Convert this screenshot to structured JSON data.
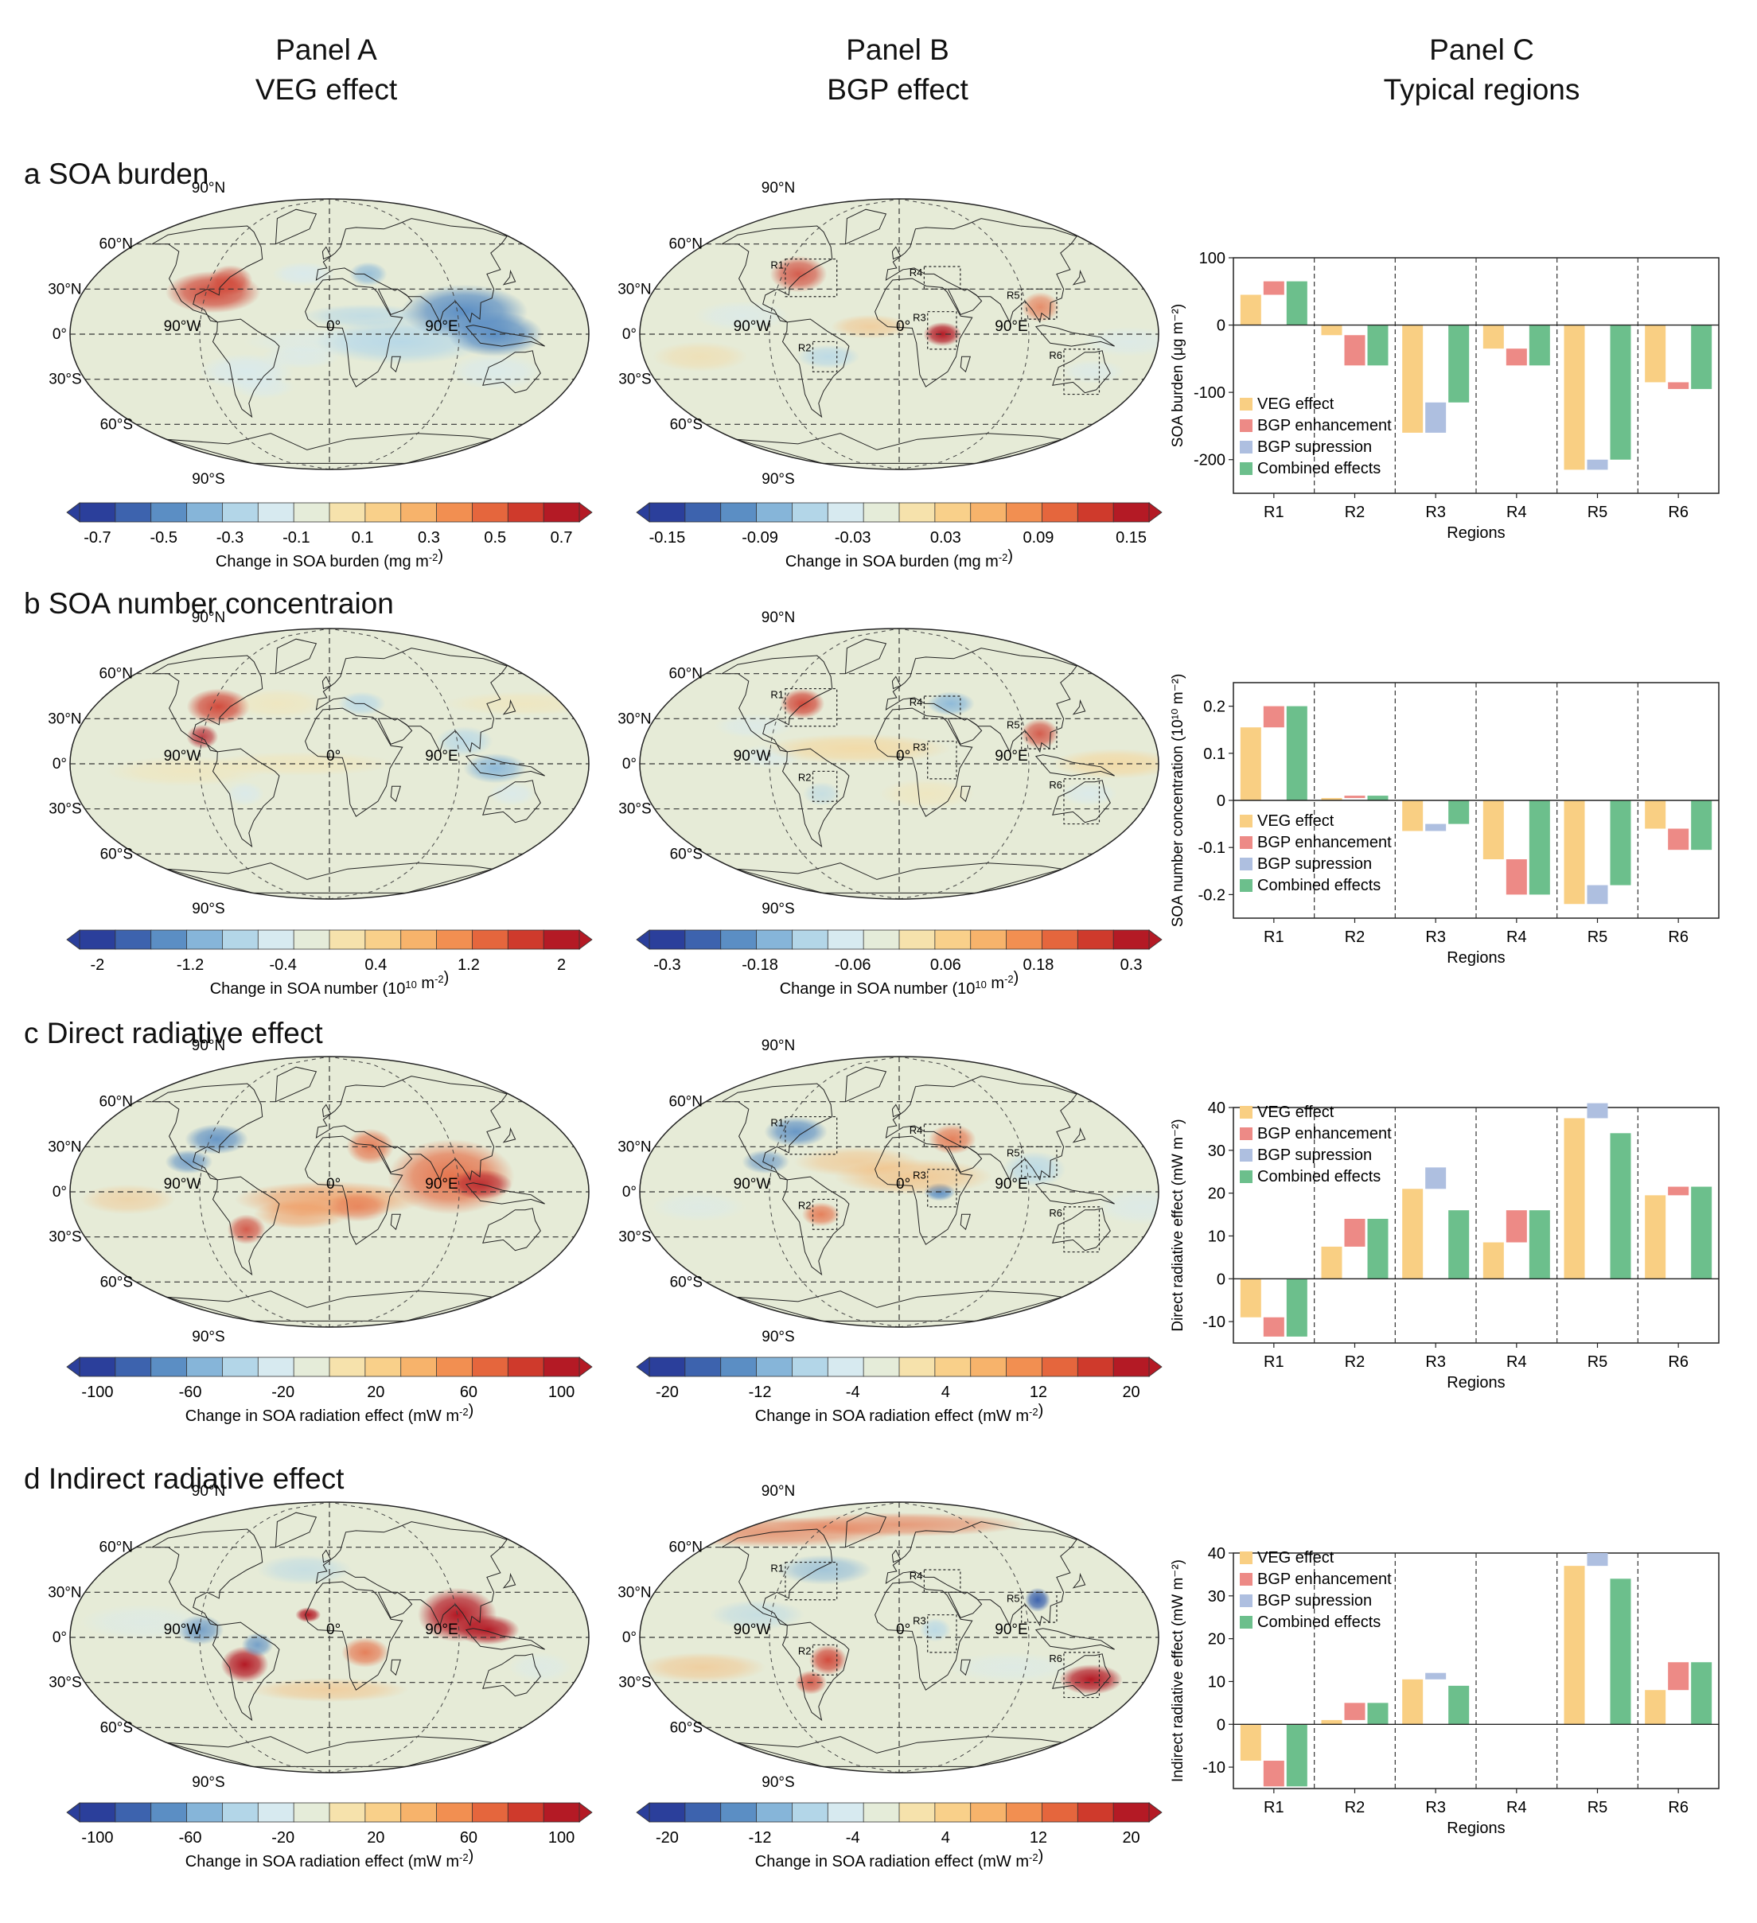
{
  "column_headers": [
    {
      "line1": "Panel A",
      "line2": "VEG effect"
    },
    {
      "line1": "Panel B",
      "line2": "BGP effect"
    },
    {
      "line1": "Panel C",
      "line2": "Typical regions"
    }
  ],
  "map_labels": {
    "lat": [
      "90°N",
      "60°N",
      "30°N",
      "0°",
      "30°S",
      "60°S",
      "90°S"
    ],
    "lon": [
      "90°W",
      "0°",
      "90°E"
    ],
    "regions": [
      "R1",
      "R2",
      "R3",
      "R4",
      "R5",
      "R6"
    ]
  },
  "colors": {
    "veg": "#f9cf83",
    "bgp_enh": "#ed8a86",
    "bgp_sup": "#aebfe0",
    "combined": "#6cbf8c",
    "colormap": [
      "#2b3f9b",
      "#3d63ae",
      "#5b8ec4",
      "#86b5d9",
      "#b3d6e8",
      "#d7eaf0",
      "#e5ecd9",
      "#f6e2ac",
      "#f9d08a",
      "#f7b36b",
      "#f28f51",
      "#e5663d",
      "#cf3a2c",
      "#b41a25"
    ]
  },
  "legend": [
    "VEG effect",
    "BGP enhancement",
    "BGP supression",
    "Combined effects"
  ],
  "xlabel": "Regions",
  "rows": [
    {
      "title": "a SOA burden",
      "cbarA": {
        "ticks": [
          "-0.7",
          "-0.5",
          "-0.3",
          "-0.1",
          "0.1",
          "0.3",
          "0.5",
          "0.7"
        ],
        "label_prefix": "Change in SOA burden (mg m",
        "label_sup": "-2",
        "label_suffix": ")"
      },
      "cbarB": {
        "ticks": [
          "-0.15",
          "-0.09",
          "-0.03",
          "0.03",
          "0.09",
          "0.15"
        ],
        "label_prefix": "Change in SOA burden (mg m",
        "label_sup": "-2",
        "label_suffix": ")"
      }
    },
    {
      "title": "b SOA number concentraion",
      "cbarA": {
        "ticks": [
          "-2",
          "-1.2",
          "-0.4",
          "0.4",
          "1.2",
          "2"
        ],
        "label_prefix": "Change in SOA number (10",
        "label_sup": "10",
        "label_suffix": " m",
        "label_sup2": "-2",
        "label_suffix2": ")"
      },
      "cbarB": {
        "ticks": [
          "-0.3",
          "-0.18",
          "-0.06",
          "0.06",
          "0.18",
          "0.3"
        ],
        "label_prefix": "Change in SOA number (10",
        "label_sup": "10",
        "label_suffix": " m",
        "label_sup2": "-2",
        "label_suffix2": ")"
      }
    },
    {
      "title": "c Direct radiative effect",
      "cbarA": {
        "ticks": [
          "-100",
          "-60",
          "-20",
          "20",
          "60",
          "100"
        ],
        "label_prefix": "Change in SOA radiation effect (mW m",
        "label_sup": "-2",
        "label_suffix": ")"
      },
      "cbarB": {
        "ticks": [
          "-20",
          "-12",
          "-4",
          "4",
          "12",
          "20"
        ],
        "label_prefix": "Change in SOA radiation effect (mW m",
        "label_sup": "-2",
        "label_suffix": ")"
      }
    },
    {
      "title": "d Indirect radiative effect",
      "cbarA": {
        "ticks": [
          "-100",
          "-60",
          "-20",
          "20",
          "60",
          "100"
        ],
        "label_prefix": "Change in SOA radiation effect (mW m",
        "label_sup": "-2",
        "label_suffix": ")"
      },
      "cbarB": {
        "ticks": [
          "-20",
          "-12",
          "-4",
          "4",
          "12",
          "20"
        ],
        "label_prefix": "Change in SOA radiation effect (mW m",
        "label_sup": "-2",
        "label_suffix": ")"
      }
    }
  ],
  "chart_data": [
    {
      "type": "bar",
      "categories": [
        "R1",
        "R2",
        "R3",
        "R4",
        "R5",
        "R6"
      ],
      "ylabel": "SOA burden (μg m⁻²)",
      "ylim": [
        -250,
        100
      ],
      "yticks": [
        100,
        0,
        -100,
        -200
      ],
      "series": [
        {
          "name": "VEG effect",
          "values": [
            45,
            -15,
            -160,
            -35,
            -215,
            -85
          ]
        },
        {
          "name": "BGP enhancement",
          "values": [
            20,
            -45,
            0,
            -25,
            0,
            -10
          ]
        },
        {
          "name": "BGP supression",
          "values": [
            0,
            0,
            45,
            0,
            15,
            0
          ]
        },
        {
          "name": "Combined effects",
          "values": [
            65,
            -60,
            -115,
            -60,
            -200,
            -95
          ]
        }
      ]
    },
    {
      "type": "bar",
      "categories": [
        "R1",
        "R2",
        "R3",
        "R4",
        "R5",
        "R6"
      ],
      "ylabel": "SOA number concentration (10¹⁰ m⁻²)",
      "ylim": [
        -0.25,
        0.25
      ],
      "yticks": [
        0.2,
        0.1,
        0.0,
        -0.1,
        -0.2
      ],
      "series": [
        {
          "name": "VEG effect",
          "values": [
            0.155,
            0.005,
            -0.065,
            -0.125,
            -0.22,
            -0.06
          ]
        },
        {
          "name": "BGP enhancement",
          "values": [
            0.045,
            0.005,
            0,
            -0.075,
            0,
            -0.045
          ]
        },
        {
          "name": "BGP supression",
          "values": [
            0,
            0,
            0.015,
            0,
            0.04,
            0
          ]
        },
        {
          "name": "Combined effects",
          "values": [
            0.2,
            0.01,
            -0.05,
            -0.2,
            -0.18,
            -0.105
          ]
        }
      ]
    },
    {
      "type": "bar",
      "categories": [
        "R1",
        "R2",
        "R3",
        "R4",
        "R5",
        "R6"
      ],
      "ylabel": "Direct radiative effect (mW m⁻²)",
      "ylim": [
        -15,
        40
      ],
      "yticks": [
        40,
        30,
        20,
        10,
        0,
        -10
      ],
      "series": [
        {
          "name": "VEG effect",
          "values": [
            -9,
            7.5,
            21,
            8.5,
            37.5,
            19.5
          ]
        },
        {
          "name": "BGP enhancement",
          "values": [
            -4.5,
            6.5,
            0,
            7.5,
            0,
            2
          ]
        },
        {
          "name": "BGP supression",
          "values": [
            0,
            0,
            5,
            0,
            3.5,
            0
          ]
        },
        {
          "name": "Combined effects",
          "values": [
            -13.5,
            14,
            16,
            16,
            34,
            21.5
          ]
        }
      ]
    },
    {
      "type": "bar",
      "categories": [
        "R1",
        "R2",
        "R3",
        "R4",
        "R5",
        "R6"
      ],
      "ylabel": "Indirect radiative effect (mW m⁻²)",
      "ylim": [
        -15,
        40
      ],
      "yticks": [
        40,
        30,
        20,
        10,
        0,
        -10
      ],
      "series": [
        {
          "name": "VEG effect",
          "values": [
            -8.5,
            1,
            10.5,
            0,
            37,
            8
          ]
        },
        {
          "name": "BGP enhancement",
          "values": [
            -6,
            4,
            0,
            0,
            0,
            6.5
          ]
        },
        {
          "name": "BGP supression",
          "values": [
            0,
            0,
            1.5,
            0,
            3,
            0
          ]
        },
        {
          "name": "Combined effects",
          "values": [
            -14.5,
            5,
            9,
            0,
            34,
            14.5
          ]
        }
      ]
    }
  ]
}
